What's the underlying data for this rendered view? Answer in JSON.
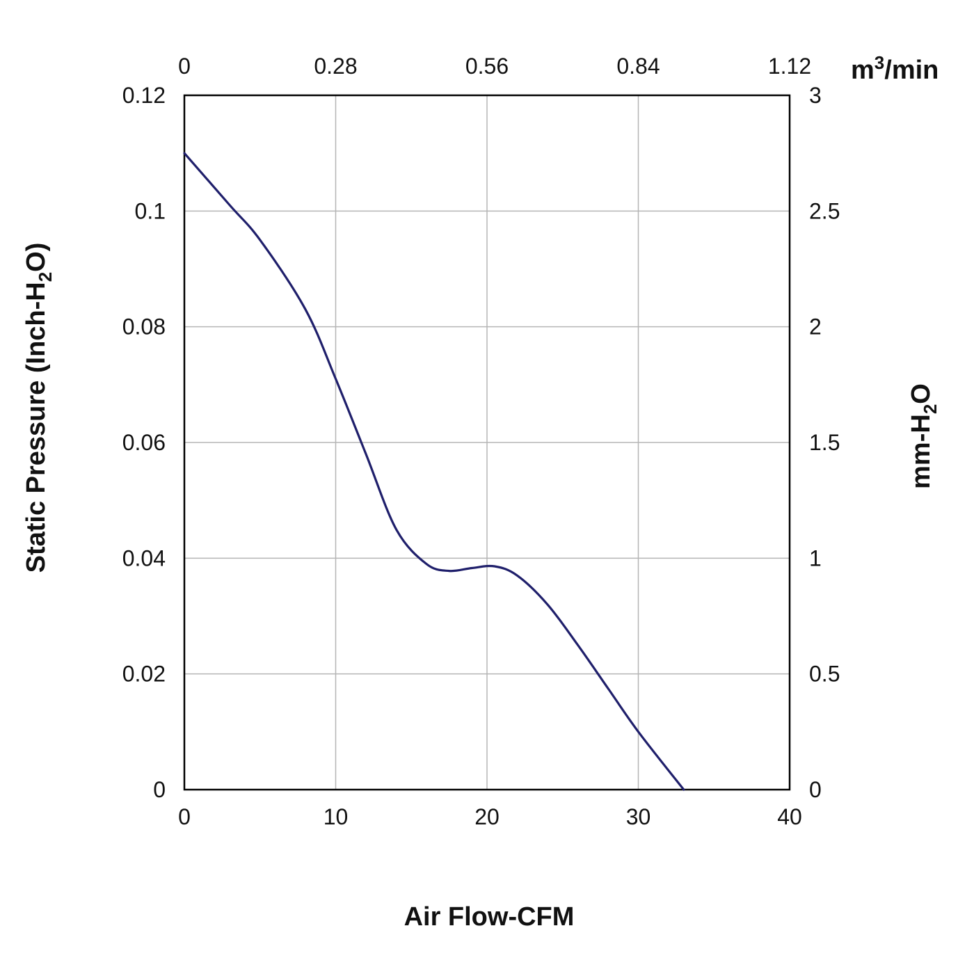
{
  "chart_data": {
    "type": "line",
    "x_axis": {
      "label": "Air Flow-CFM",
      "range": [
        0,
        40
      ],
      "ticks": [
        0,
        10,
        20,
        30,
        40
      ],
      "tick_labels": [
        "0",
        "10",
        "20",
        "30",
        "40"
      ]
    },
    "x2_axis": {
      "unit": {
        "base": "m",
        "sup": "3",
        "tail": "/min"
      },
      "range": [
        0,
        1.12
      ],
      "ticks": [
        0,
        0.28,
        0.56,
        0.84,
        1.12
      ],
      "tick_labels": [
        "0",
        "0.28",
        "0.56",
        "0.84",
        "1.12"
      ]
    },
    "y_axis": {
      "label": {
        "pre": "Static Pressure (Inch-H",
        "sub": "2",
        "post": "O)"
      },
      "range": [
        0,
        0.12
      ],
      "ticks": [
        0,
        0.02,
        0.04,
        0.06,
        0.08,
        0.1,
        0.12
      ],
      "tick_labels": [
        "0",
        "0.02",
        "0.04",
        "0.06",
        "0.08",
        "0.1",
        "0.12"
      ]
    },
    "y2_axis": {
      "label": {
        "pre": "mm-H",
        "sub": "2",
        "post": "O"
      },
      "range": [
        0,
        3
      ],
      "ticks": [
        0,
        0.5,
        1,
        1.5,
        2,
        2.5,
        3
      ],
      "tick_labels": [
        "0",
        "0.5",
        "1",
        "1.5",
        "2",
        "2.5",
        "3"
      ]
    },
    "grid": true,
    "series": [
      {
        "color": "#1f1f6b",
        "points": [
          {
            "x": 0,
            "y": 0.11
          },
          {
            "x": 3,
            "y": 0.101
          },
          {
            "x": 5,
            "y": 0.095
          },
          {
            "x": 8,
            "y": 0.083
          },
          {
            "x": 10,
            "y": 0.071
          },
          {
            "x": 12,
            "y": 0.058
          },
          {
            "x": 14,
            "y": 0.045
          },
          {
            "x": 16,
            "y": 0.039
          },
          {
            "x": 17.5,
            "y": 0.0378
          },
          {
            "x": 19,
            "y": 0.0383
          },
          {
            "x": 20.5,
            "y": 0.0386
          },
          {
            "x": 22,
            "y": 0.037
          },
          {
            "x": 24,
            "y": 0.032
          },
          {
            "x": 26,
            "y": 0.025
          },
          {
            "x": 28,
            "y": 0.0175
          },
          {
            "x": 30,
            "y": 0.01
          },
          {
            "x": 33,
            "y": 0.0
          }
        ]
      }
    ]
  }
}
